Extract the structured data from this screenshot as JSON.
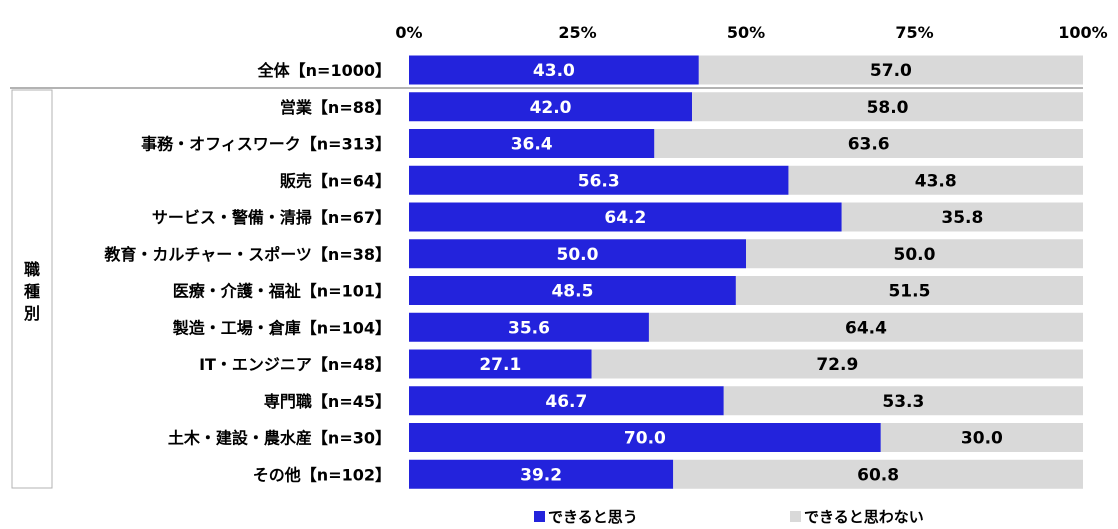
{
  "chart_data": {
    "type": "bar",
    "orientation": "horizontal",
    "stacked": true,
    "xlim": [
      0,
      100
    ],
    "x_ticks": [
      "0%",
      "25%",
      "50%",
      "75%",
      "100%"
    ],
    "group_label": "職種別",
    "categories": [
      "全体【n=1000】",
      "営業【n=88】",
      "事務・オフィスワーク【n=313】",
      "販売【n=64】",
      "サービス・警備・清掃【n=67】",
      "教育・カルチャー・スポーツ【n=38】",
      "医療・介護・福祉【n=101】",
      "製造・工場・倉庫【n=104】",
      "IT・エンジニア【n=48】",
      "専門職【n=45】",
      "土木・建設・農水産【n=30】",
      "その他【n=102】"
    ],
    "series": [
      {
        "name": "できると思う",
        "color": "#2323dc",
        "values": [
          43.0,
          42.0,
          36.4,
          56.3,
          64.2,
          50.0,
          48.5,
          35.6,
          27.1,
          46.7,
          70.0,
          39.2
        ],
        "labels": [
          "43.0",
          "42.0",
          "36.4",
          "56.3",
          "64.2",
          "50.0",
          "48.5",
          "35.6",
          "27.1",
          "46.7",
          "70.0",
          "39.2"
        ]
      },
      {
        "name": "できると思わない",
        "color": "#d9d9d9",
        "values": [
          57.0,
          58.0,
          63.6,
          43.8,
          35.8,
          50.0,
          51.5,
          64.4,
          72.9,
          53.3,
          30.0,
          60.8
        ],
        "labels": [
          "57.0",
          "58.0",
          "63.6",
          "43.8",
          "35.8",
          "50.0",
          "51.5",
          "64.4",
          "72.9",
          "53.3",
          "30.0",
          "60.8"
        ]
      }
    ],
    "legend": "bottom-center",
    "grid": false
  }
}
